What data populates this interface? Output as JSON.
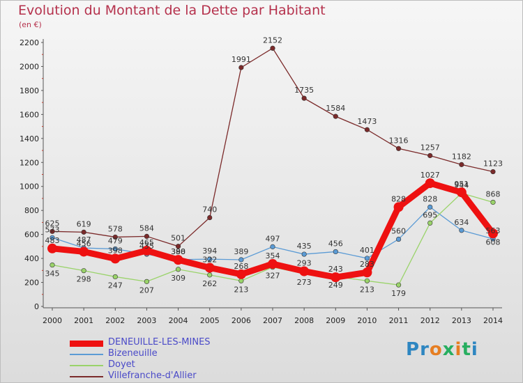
{
  "title": "Evolution du Montant de la Dette par Habitant",
  "subtitle": "(en €)",
  "logo": "Proxiti",
  "chart_data": {
    "type": "line",
    "x": [
      "2000",
      "2001",
      "2002",
      "2003",
      "2004",
      "2005",
      "2006",
      "2007",
      "2008",
      "2009",
      "2010",
      "2011",
      "2012",
      "2013",
      "2014"
    ],
    "ylim": [
      0,
      2200
    ],
    "yticks": [
      0,
      200,
      400,
      600,
      800,
      1000,
      1200,
      1400,
      1600,
      1800,
      2000,
      2200
    ],
    "grid": false,
    "legend_position": "bottom-left",
    "series": [
      {
        "name": "DENEUILLE-LES-MINES",
        "color": "#ee1111",
        "values": [
          483,
          456,
          398,
          465,
          388,
          322,
          268,
          354,
          293,
          243,
          283,
          828,
          1027,
          951,
          608
        ],
        "labels": [
          "483",
          "456",
          "398",
          "465",
          "388",
          "322",
          "268",
          "354",
          "293",
          "243",
          "283",
          "828",
          "1027",
          "951",
          "608"
        ]
      },
      {
        "name": "Bizeneuille",
        "color": "#5b9bd5",
        "values": [
          573,
          487,
          479,
          435,
          390,
          394,
          389,
          497,
          435,
          456,
          401,
          560,
          828,
          634,
          563
        ],
        "labels": [
          "573",
          "487",
          "479",
          "435",
          "390",
          "394",
          "389",
          "497",
          "435",
          "456",
          "401",
          "560",
          "828",
          "634",
          "563"
        ]
      },
      {
        "name": "Doyet",
        "color": "#9ad36a",
        "values": [
          345,
          298,
          247,
          207,
          309,
          262,
          213,
          327,
          273,
          249,
          213,
          179,
          695,
          944,
          868
        ],
        "labels": [
          "345",
          "298",
          "247",
          "207",
          "309",
          "262",
          "213",
          "327",
          "273",
          "249",
          "213",
          "179",
          "695",
          "944",
          "868"
        ]
      },
      {
        "name": "Villefranche-d'Allier",
        "color": "#7b2a2a",
        "values": [
          625,
          619,
          578,
          584,
          501,
          740,
          1991,
          2152,
          1735,
          1584,
          1473,
          1316,
          1257,
          1182,
          1123
        ],
        "labels": [
          "625",
          "619",
          "578",
          "584",
          "501",
          "740",
          "1991",
          "2152",
          "1735",
          "1584",
          "1473",
          "1316",
          "1257",
          "1182",
          "1123"
        ]
      }
    ]
  }
}
